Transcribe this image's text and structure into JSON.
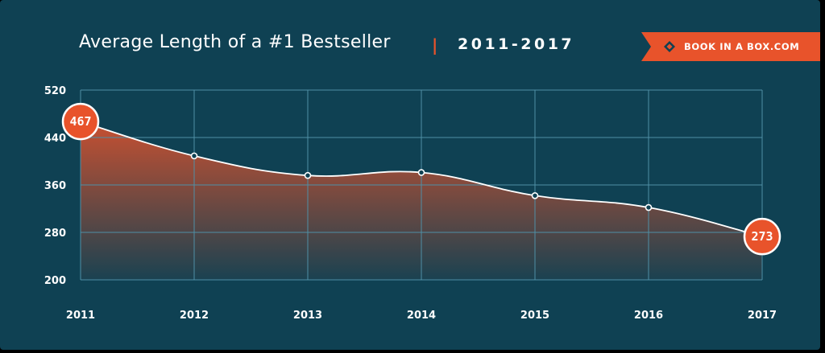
{
  "header": {
    "title": "Average Length of a #1 Bestseller",
    "separator": "|",
    "years": "2011-2017"
  },
  "brand": {
    "label": "BOOK IN A BOX.COM",
    "icon": "box-logo-icon",
    "color": "#e8532b"
  },
  "colors": {
    "background": "#0f4153",
    "grid": "#4f8fa6",
    "accent": "#e8532b",
    "line": "#ffffff"
  },
  "chart_data": {
    "type": "area",
    "title": "Average Length of a #1 Bestseller",
    "x": [
      "2011",
      "2012",
      "2013",
      "2014",
      "2015",
      "2016",
      "2017"
    ],
    "series": [
      {
        "values": [
          467,
          409,
          376,
          381,
          342,
          322,
          273
        ]
      }
    ],
    "ylim": [
      200,
      520
    ],
    "yticks": [
      520,
      440,
      360,
      280,
      200
    ],
    "grid": true,
    "labeled_points": [
      {
        "x": "2011",
        "label": "467"
      },
      {
        "x": "2017",
        "label": "273"
      }
    ]
  }
}
